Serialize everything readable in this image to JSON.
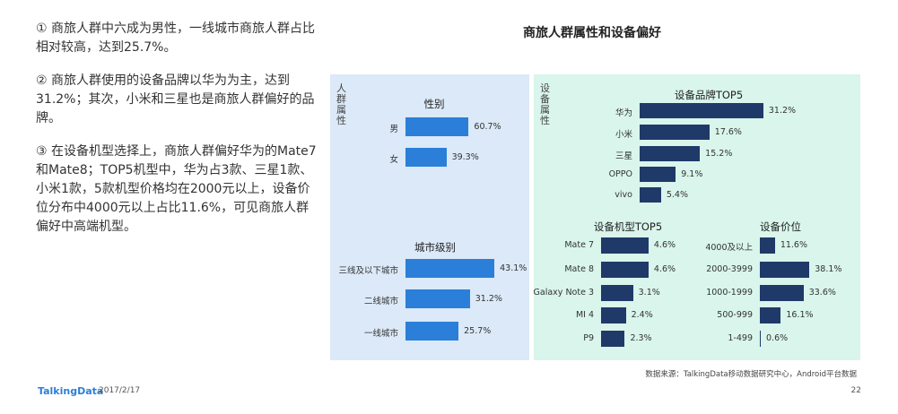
{
  "summary": {
    "p1": "① 商旅人群中六成为男性，一线城市商旅人群占比相对较高，达到25.7%。",
    "p2": "② 商旅人群使用的设备品牌以华为为主，达到31.2%；其次，小米和三星也是商旅人群偏好的品牌。",
    "p3": "③ 在设备机型选择上，商旅人群偏好华为的Mate7和Mate8；TOP5机型中，华为占3款、三星1款、小米1款，5款机型价格均在2000元以上，设备价位分布中4000元以上占比11.6%，可见商旅人群偏好中高端机型。"
  },
  "title": "商旅人群属性和设备偏好",
  "left_panel_label": "人群属性",
  "right_panel_label": "设备属性",
  "colors": {
    "left_bg": "#dbe9f8",
    "right_bg": "#d9f5ec",
    "blue_bar": "#2b7fd9",
    "navy_bar": "#1f3a68",
    "brand": "#2b7fd9"
  },
  "chart_data": [
    {
      "type": "bar",
      "title": "性别",
      "categories": [
        "男",
        "女"
      ],
      "values": [
        60.7,
        39.3
      ],
      "labels": [
        "60.7%",
        "39.3%"
      ],
      "color": "blue"
    },
    {
      "type": "bar",
      "title": "城市级别",
      "categories": [
        "三线及以下城市",
        "二线城市",
        "一线城市"
      ],
      "values": [
        43.1,
        31.2,
        25.7
      ],
      "labels": [
        "43.1%",
        "31.2%",
        "25.7%"
      ],
      "color": "blue"
    },
    {
      "type": "bar",
      "title": "设备品牌TOP5",
      "categories": [
        "华为",
        "小米",
        "三星",
        "OPPO",
        "vivo"
      ],
      "values": [
        31.2,
        17.6,
        15.2,
        9.1,
        5.4
      ],
      "labels": [
        "31.2%",
        "17.6%",
        "15.2%",
        "9.1%",
        "5.4%"
      ],
      "color": "navy"
    },
    {
      "type": "bar",
      "title": "设备机型TOP5",
      "categories": [
        "Mate 7",
        "Mate 8",
        "Galaxy Note 3",
        "MI 4",
        "P9"
      ],
      "values": [
        4.6,
        4.6,
        3.1,
        2.4,
        2.3
      ],
      "labels": [
        "4.6%",
        "4.6%",
        "3.1%",
        "2.4%",
        "2.3%"
      ],
      "color": "navy"
    },
    {
      "type": "bar",
      "title": "设备价位",
      "categories": [
        "4000及以上",
        "2000-3999",
        "1000-1999",
        "500-999",
        "1-499"
      ],
      "values": [
        11.6,
        38.1,
        33.6,
        16.1,
        0.6
      ],
      "labels": [
        "11.6%",
        "38.1%",
        "33.6%",
        "16.1%",
        "0.6%"
      ],
      "color": "navy"
    }
  ],
  "footer": {
    "logo": "TalkingData",
    "date": "2017/2/17",
    "source": "数据来源：TalkingData移动数据研究中心，Android平台数据",
    "page": "22"
  }
}
